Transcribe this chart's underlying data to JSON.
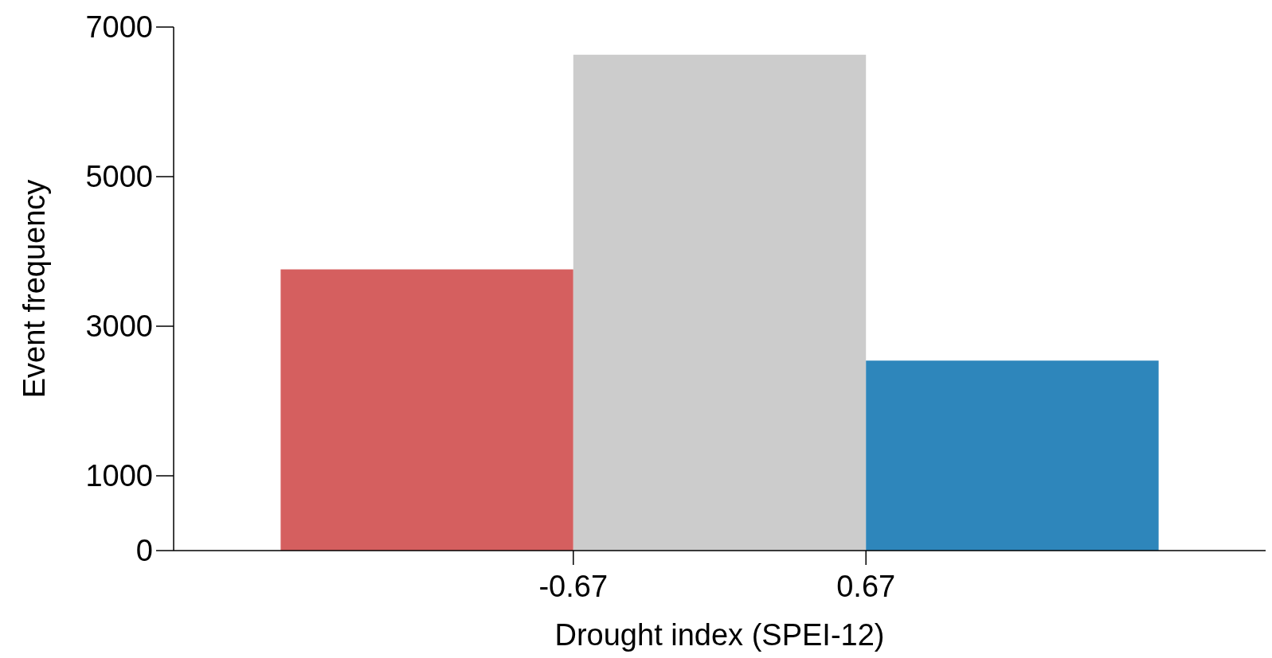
{
  "chart_data": {
    "type": "histogram",
    "xlabel": "Drought index (SPEI-12)",
    "ylabel": "Event frequency",
    "bins": [
      -2.01,
      -0.67,
      0.67,
      2.01
    ],
    "values": [
      3760,
      6630,
      2540
    ],
    "colors": [
      "#d55f5f",
      "#cccccc",
      "#2e86bb"
    ],
    "xlim": [
      -2.5,
      2.5
    ],
    "xticks": [
      -0.67,
      0.67
    ],
    "ylim": [
      0,
      7000
    ],
    "yticks": [
      0,
      1000,
      3000,
      5000,
      7000
    ],
    "grid": false
  }
}
